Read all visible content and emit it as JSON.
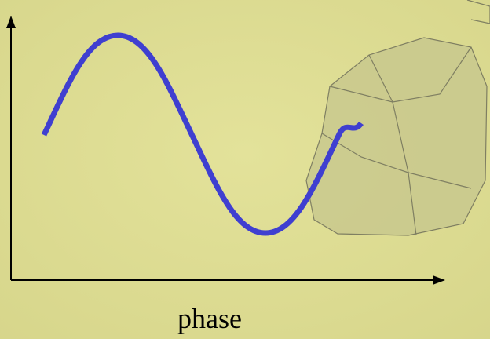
{
  "x_axis_label": "phase"
}
